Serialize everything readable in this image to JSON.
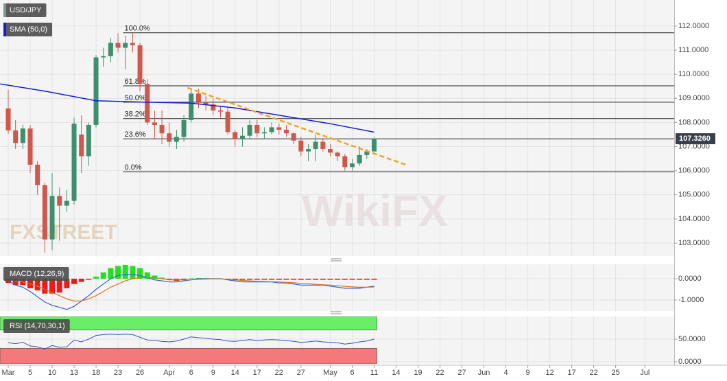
{
  "chart_data": [
    {
      "type": "candlestick",
      "title": "USD/JPY",
      "x": [
        0,
        1,
        2,
        3,
        4,
        5,
        6,
        7,
        8,
        9,
        10,
        11,
        12,
        13,
        14,
        15,
        16,
        17,
        18,
        19,
        20,
        21,
        22,
        23,
        24,
        25,
        26,
        27,
        28,
        29,
        30,
        31,
        32,
        33,
        34,
        35,
        36,
        37,
        38,
        39,
        40,
        41,
        42,
        43,
        44,
        45,
        46,
        47,
        48,
        49,
        50
      ],
      "open": [
        108.58,
        107.67,
        107.15,
        107.75,
        106.25,
        105.4,
        103.15,
        104.95,
        104.55,
        104.75,
        107.5,
        106.6,
        107.9,
        110.7,
        110.75,
        111.3,
        111.1,
        111.3,
        111.2,
        109.6,
        108.0,
        107.9,
        107.55,
        107.2,
        107.4,
        108.1,
        109.2,
        108.85,
        108.75,
        108.5,
        108.45,
        107.6,
        107.3,
        107.45,
        107.9,
        107.55,
        107.6,
        107.8,
        107.7,
        107.55,
        107.25,
        106.8,
        106.9,
        107.2,
        106.9,
        106.75,
        106.6,
        106.15,
        106.3,
        106.65,
        106.8
      ],
      "high": [
        109.35,
        108.1,
        107.9,
        107.9,
        106.4,
        105.5,
        105.9,
        105.3,
        105.2,
        108.2,
        108.3,
        108.0,
        110.8,
        111.1,
        111.5,
        111.7,
        111.6,
        111.7,
        111.3,
        109.8,
        108.5,
        108.5,
        108.0,
        107.7,
        108.3,
        109.4,
        109.4,
        109.1,
        109.0,
        108.7,
        108.6,
        107.7,
        107.8,
        108.1,
        108.1,
        107.8,
        108.0,
        107.95,
        107.9,
        107.6,
        107.4,
        107.1,
        107.5,
        107.3,
        107.1,
        106.8,
        106.7,
        106.5,
        107.0,
        106.9,
        107.4
      ],
      "low": [
        107.53,
        106.9,
        106.9,
        105.9,
        105.0,
        102.6,
        102.7,
        103.1,
        104.3,
        104.6,
        105.9,
        106.2,
        107.8,
        110.3,
        110.5,
        110.9,
        110.2,
        110.9,
        109.3,
        107.9,
        107.3,
        107.1,
        107.0,
        106.9,
        107.2,
        108.0,
        108.6,
        108.5,
        108.3,
        108.2,
        107.5,
        107.0,
        107.0,
        107.3,
        107.4,
        107.3,
        107.5,
        107.5,
        107.4,
        107.1,
        106.6,
        106.4,
        106.4,
        106.8,
        106.6,
        106.4,
        106.0,
        106.0,
        106.2,
        106.5,
        106.7
      ],
      "close": [
        107.67,
        107.15,
        107.75,
        106.25,
        105.4,
        103.15,
        104.95,
        104.55,
        104.75,
        107.95,
        106.6,
        107.9,
        110.7,
        110.75,
        111.3,
        111.1,
        111.3,
        111.2,
        109.6,
        108.0,
        107.9,
        107.55,
        107.2,
        107.4,
        108.1,
        109.2,
        108.85,
        108.75,
        108.5,
        108.45,
        107.6,
        107.3,
        107.45,
        107.9,
        107.55,
        107.6,
        107.8,
        107.7,
        107.55,
        107.25,
        106.8,
        106.9,
        107.2,
        106.9,
        106.75,
        106.6,
        106.15,
        106.3,
        106.65,
        106.8,
        107.326
      ],
      "up_color": "#3d8f6e",
      "down_color": "#d0574b",
      "sma": {
        "name": "SMA (50,0)",
        "color": "#1a1ad6",
        "x": [
          -1.1,
          5,
          12,
          18,
          25,
          31,
          37,
          44,
          50
        ],
        "values": [
          109.6,
          109.3,
          108.9,
          108.85,
          108.8,
          108.6,
          108.3,
          107.95,
          107.6
        ]
      },
      "fib_start_x": 15.7,
      "fib_levels": [
        {
          "label": "100.0%",
          "price": 111.72
        },
        {
          "label": "61.8%",
          "price": 109.52
        },
        {
          "label": "50.0%",
          "price": 108.84
        },
        {
          "label": "38.2%",
          "price": 108.16
        },
        {
          "label": "23.6%",
          "price": 107.32
        },
        {
          "label": "0.0%",
          "price": 105.96
        }
      ],
      "trendline": {
        "color": "#f5a020",
        "x": [
          24.5,
          54.3
        ],
        "values": [
          109.44,
          106.25
        ]
      },
      "last_price": {
        "value": 107.326,
        "label": "107.3260"
      },
      "watermarks": [
        "FXSTREET",
        "WikiFX"
      ],
      "xlim": [
        -1.125,
        91
      ],
      "ylim": [
        102.46,
        113.08
      ],
      "yticks": [
        {
          "value": 103,
          "label": "103.0000"
        },
        {
          "value": 104,
          "label": "104.0000"
        },
        {
          "value": 105,
          "label": "105.0000"
        },
        {
          "value": 106,
          "label": "106.0000"
        },
        {
          "value": 107,
          "label": "107.0000"
        },
        {
          "value": 108,
          "label": "108.0000"
        },
        {
          "value": 109,
          "label": "109.0000"
        },
        {
          "value": 110,
          "label": "110.0000"
        },
        {
          "value": 111,
          "label": "111.0000"
        },
        {
          "value": 112,
          "label": "112.0000"
        }
      ],
      "grid": true
    },
    {
      "type": "macd",
      "title": "MACD (12,26,9)",
      "histogram": [
        -0.2,
        -0.3,
        -0.3,
        -0.45,
        -0.55,
        -0.7,
        -0.7,
        -0.65,
        -0.45,
        -0.25,
        -0.15,
        -0.05,
        0.1,
        0.3,
        0.5,
        0.6,
        0.65,
        0.6,
        0.5,
        0.3,
        0.15,
        0.05,
        -0.05,
        -0.1,
        -0.05,
        0.02,
        0.03,
        0.02,
        0.01,
        0.01,
        -0.05,
        -0.05,
        -0.05,
        -0.05,
        -0.05,
        -0.05,
        -0.05,
        -0.05,
        -0.05,
        -0.05,
        -0.05,
        -0.05,
        -0.05,
        -0.05,
        -0.05,
        -0.05,
        -0.05,
        -0.05,
        -0.05,
        -0.05,
        -0.05
      ],
      "macd": [
        -0.1,
        -0.3,
        -0.4,
        -0.6,
        -0.85,
        -1.1,
        -1.25,
        -1.35,
        -1.45,
        -1.3,
        -1.05,
        -0.8,
        -0.5,
        -0.25,
        0.0,
        0.15,
        0.2,
        0.2,
        0.15,
        0.05,
        -0.05,
        -0.1,
        -0.15,
        -0.15,
        -0.1,
        -0.05,
        0.0,
        0.0,
        0.0,
        0.0,
        -0.05,
        -0.1,
        -0.15,
        -0.15,
        -0.15,
        -0.15,
        -0.15,
        -0.2,
        -0.2,
        -0.25,
        -0.3,
        -0.3,
        -0.3,
        -0.3,
        -0.35,
        -0.4,
        -0.45,
        -0.45,
        -0.45,
        -0.4,
        -0.35
      ],
      "signal": [
        0.0,
        -0.1,
        -0.15,
        -0.25,
        -0.35,
        -0.5,
        -0.65,
        -0.8,
        -0.95,
        -1.05,
        -1.05,
        -0.95,
        -0.8,
        -0.6,
        -0.4,
        -0.25,
        -0.1,
        0.0,
        0.05,
        0.05,
        0.05,
        0.0,
        -0.05,
        -0.05,
        -0.05,
        -0.05,
        -0.03,
        -0.02,
        -0.01,
        -0.01,
        -0.03,
        -0.05,
        -0.08,
        -0.1,
        -0.12,
        -0.13,
        -0.14,
        -0.15,
        -0.17,
        -0.19,
        -0.22,
        -0.24,
        -0.26,
        -0.28,
        -0.3,
        -0.33,
        -0.36,
        -0.38,
        -0.4,
        -0.4,
        -0.39
      ],
      "hist_up_color": "#22e022",
      "hist_down_color": "#ee1a1a",
      "macd_color": "#2f5fd0",
      "signal_color": "#e07020",
      "ylim": [
        -1.52,
        0.68
      ],
      "yticks": [
        {
          "value": 0,
          "label": "0.0000"
        },
        {
          "value": -1,
          "label": "-1.0000"
        }
      ]
    },
    {
      "type": "rsi",
      "title": "RSI (14,70,30,1)",
      "values": [
        42,
        40,
        43,
        35,
        33,
        28,
        36,
        32,
        33,
        48,
        44,
        50,
        58,
        60,
        61,
        60,
        61,
        60,
        54,
        48,
        47,
        45,
        44,
        46,
        50,
        55,
        53,
        52,
        50,
        49,
        46,
        45,
        47,
        49,
        47,
        48,
        49,
        48,
        47,
        45,
        43,
        44,
        46,
        44,
        43,
        42,
        39,
        41,
        44,
        46,
        50
      ],
      "color": "#3050c0",
      "upper": 70,
      "lower": 30,
      "upper_color": "#6aee6a",
      "lower_color": "#f27a7a",
      "ylim": [
        -4.5,
        100
      ],
      "yticks": [
        {
          "value": 50,
          "label": "50.0000"
        },
        {
          "value": 0,
          "label": "0.0000"
        }
      ],
      "xticks": [
        {
          "value": 0,
          "label": "Mar"
        },
        {
          "value": 3,
          "label": "5"
        },
        {
          "value": 6,
          "label": "10"
        },
        {
          "value": 9,
          "label": "13"
        },
        {
          "value": 12,
          "label": "18"
        },
        {
          "value": 15,
          "label": "23"
        },
        {
          "value": 18,
          "label": "26"
        },
        {
          "value": 22,
          "label": "Apr"
        },
        {
          "value": 25,
          "label": "6"
        },
        {
          "value": 28,
          "label": "9"
        },
        {
          "value": 31,
          "label": "14"
        },
        {
          "value": 34,
          "label": "17"
        },
        {
          "value": 37,
          "label": "22"
        },
        {
          "value": 40,
          "label": "27"
        },
        {
          "value": 44,
          "label": "May"
        },
        {
          "value": 47,
          "label": "6"
        },
        {
          "value": 50,
          "label": "11"
        },
        {
          "value": 53,
          "label": "14"
        },
        {
          "value": 56,
          "label": "19"
        },
        {
          "value": 59,
          "label": "22"
        },
        {
          "value": 62,
          "label": "27"
        },
        {
          "value": 65,
          "label": "Jun"
        },
        {
          "value": 68,
          "label": "4"
        },
        {
          "value": 71,
          "label": "9"
        },
        {
          "value": 74,
          "label": "12"
        },
        {
          "value": 77,
          "label": "17"
        },
        {
          "value": 80,
          "label": "22"
        },
        {
          "value": 83,
          "label": "25"
        },
        {
          "value": 87,
          "label": "Jul"
        }
      ]
    }
  ]
}
